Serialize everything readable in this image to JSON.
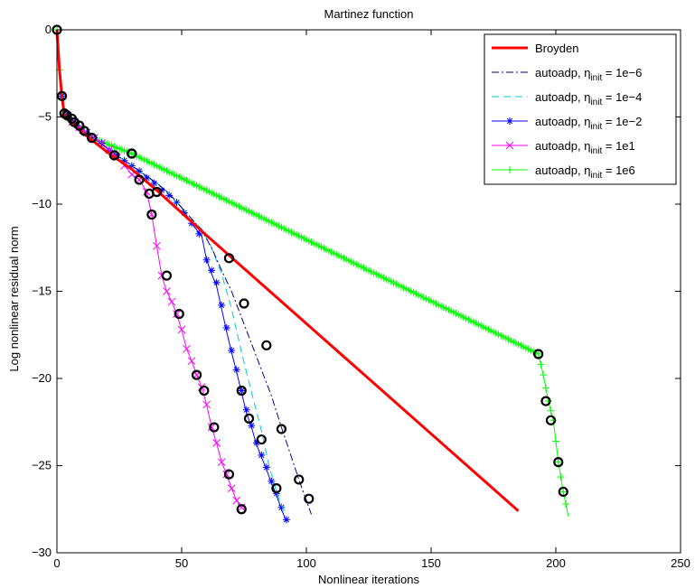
{
  "chart_data": {
    "type": "line",
    "title": "Martinez function",
    "xlabel": "Nonlinear iterations",
    "ylabel": "Log nonlinear residual norm",
    "xlim": [
      0,
      250
    ],
    "ylim": [
      -30,
      0
    ],
    "xticks": [
      0,
      50,
      100,
      150,
      200,
      250
    ],
    "yticks": [
      0,
      -5,
      -10,
      -15,
      -20,
      -25,
      -30
    ],
    "grid": false,
    "legend_position": "top-right",
    "legend_labels": [
      {
        "base": "Broyden",
        "sub": "",
        "tail": ""
      },
      {
        "base": "autoadp, η",
        "sub": "init",
        "tail": " = 1e−6"
      },
      {
        "base": "autoadp, η",
        "sub": "init",
        "tail": " = 1e−4"
      },
      {
        "base": "autoadp, η",
        "sub": "init",
        "tail": " = 1e−2"
      },
      {
        "base": "autoadp, η",
        "sub": "init",
        "tail": " = 1e1"
      },
      {
        "base": "autoadp, η",
        "sub": "init",
        "tail": " = 1e6"
      }
    ],
    "series": [
      {
        "name": "Broyden",
        "color": "#ff0000",
        "style": "solid",
        "marker": "none",
        "x": [
          0,
          1,
          2,
          3,
          5,
          8,
          12,
          20,
          30,
          40,
          50,
          60,
          185
        ],
        "y": [
          0,
          -2.3,
          -3.8,
          -4.9,
          -5.2,
          -5.6,
          -6.1,
          -7.0,
          -8.0,
          -9.2,
          -10.5,
          -11.8,
          -27.6
        ],
        "circles_x": [],
        "circles_y": []
      },
      {
        "name": "autoadp, ηinit = 1e−6",
        "color": "#00008b",
        "style": "dashdot",
        "marker": "none",
        "x": [
          0,
          1,
          2,
          3,
          5,
          8,
          12,
          20,
          30,
          40,
          45,
          50,
          55,
          58,
          62,
          66,
          70,
          74,
          78,
          82,
          86,
          90,
          94,
          97,
          100,
          102
        ],
        "y": [
          0,
          -2.3,
          -3.8,
          -4.8,
          -5.1,
          -5.5,
          -5.9,
          -6.8,
          -7.8,
          -8.8,
          -9.4,
          -10.2,
          -11.0,
          -11.5,
          -12.5,
          -13.8,
          -15.0,
          -16.5,
          -18.0,
          -19.5,
          -21.0,
          -22.8,
          -24.5,
          -25.8,
          -27.0,
          -27.8
        ],
        "circles_x": [
          69,
          75,
          84,
          90,
          97,
          101
        ],
        "circles_y": [
          -13.1,
          -15.7,
          -18.1,
          -22.9,
          -25.8,
          -26.9
        ],
        "marker_x": [],
        "marker_y": []
      },
      {
        "name": "autoadp, ηinit = 1e−4",
        "color": "#00cccc",
        "style": "dashed",
        "marker": "none",
        "x": [
          0,
          1,
          2,
          3,
          5,
          8,
          12,
          20,
          30,
          40,
          45,
          50,
          55,
          58,
          62,
          66,
          70,
          74,
          78,
          82,
          85,
          88,
          90,
          92
        ],
        "y": [
          0,
          -2.3,
          -3.8,
          -4.8,
          -5.1,
          -5.5,
          -5.9,
          -6.8,
          -7.8,
          -8.8,
          -9.4,
          -10.2,
          -11.0,
          -11.4,
          -12.5,
          -14.0,
          -16.0,
          -18.5,
          -20.8,
          -23.0,
          -25.0,
          -26.5,
          -27.3,
          -27.8
        ],
        "circles_x": [
          74,
          77,
          82,
          88
        ],
        "circles_y": [
          -20.7,
          -22.3,
          -23.5,
          -26.3
        ],
        "marker_x": [],
        "marker_y": []
      },
      {
        "name": "autoadp, ηinit = 1e−2",
        "color": "#0000ff",
        "style": "solid",
        "marker": "star",
        "x": [
          0,
          1,
          2,
          3,
          5,
          8,
          12,
          20,
          30,
          40,
          45,
          50,
          55,
          58,
          60,
          62,
          64,
          66,
          68,
          70,
          72,
          74,
          76,
          78,
          80,
          82,
          84,
          86,
          88,
          90,
          92
        ],
        "y": [
          0,
          -2.3,
          -3.8,
          -4.8,
          -5.1,
          -5.5,
          -5.9,
          -6.8,
          -7.8,
          -8.8,
          -9.4,
          -10.2,
          -11.3,
          -11.8,
          -13.2,
          -14.0,
          -14.7,
          -16.0,
          -17.3,
          -18.5,
          -19.6,
          -20.8,
          -22.0,
          -22.8,
          -23.8,
          -24.5,
          -25.2,
          -26.0,
          -26.7,
          -27.5,
          -28.2
        ],
        "circles_x": [],
        "circles_y": [],
        "marker_x": [
          2,
          4,
          6,
          8,
          10,
          12,
          15,
          18,
          21,
          24,
          27,
          30,
          33,
          36,
          39,
          42,
          45,
          48,
          51,
          54,
          57,
          60,
          62,
          64,
          66,
          68,
          70,
          72,
          74,
          76,
          78,
          80,
          82,
          84,
          86,
          88,
          90,
          92
        ],
        "marker_y": [
          -3.8,
          -4.9,
          -5.2,
          -5.5,
          -5.8,
          -5.9,
          -6.2,
          -6.5,
          -6.9,
          -7.2,
          -7.5,
          -7.8,
          -8.1,
          -8.5,
          -8.8,
          -9.2,
          -9.5,
          -9.9,
          -10.5,
          -11.1,
          -11.7,
          -13.2,
          -13.8,
          -14.5,
          -15.8,
          -17.1,
          -18.4,
          -19.5,
          -20.7,
          -21.8,
          -22.7,
          -23.7,
          -24.4,
          -25.1,
          -25.9,
          -26.6,
          -27.4,
          -28.1
        ]
      },
      {
        "name": "autoadp, ηinit = 1e1",
        "color": "#ff00ff",
        "style": "solid",
        "marker": "x",
        "x": [
          0,
          1,
          2,
          3,
          5,
          8,
          12,
          18,
          22,
          26,
          30,
          33,
          36,
          38,
          40,
          42,
          44,
          46,
          48,
          50,
          52,
          54,
          56,
          58,
          60,
          62,
          64,
          66,
          68,
          70,
          72,
          74,
          75
        ],
        "y": [
          0,
          -2.3,
          -3.8,
          -4.8,
          -5.2,
          -5.5,
          -5.9,
          -6.5,
          -7.0,
          -7.6,
          -8.3,
          -8.6,
          -9.3,
          -10.6,
          -12.4,
          -14.1,
          -15.0,
          -15.6,
          -16.3,
          -17.2,
          -18.3,
          -19.0,
          -19.8,
          -20.5,
          -21.5,
          -22.8,
          -23.7,
          -24.8,
          -25.5,
          -26.3,
          -27.0,
          -27.4,
          -27.5
        ],
        "circles_x": [
          23,
          30,
          33,
          37,
          38,
          40,
          44,
          49,
          56,
          59,
          63,
          69,
          74
        ],
        "circles_y": [
          -7.2,
          -7.1,
          -8.6,
          -9.4,
          -10.6,
          -9.3,
          -14.1,
          -16.3,
          -19.8,
          -20.7,
          -22.8,
          -25.5,
          -27.5
        ],
        "marker_x": [
          3,
          6,
          9,
          12,
          15,
          18,
          21,
          24,
          27,
          30,
          33,
          36,
          38,
          40,
          42,
          44,
          46,
          48,
          50,
          52,
          54,
          56,
          58,
          60,
          62,
          64,
          66,
          68,
          70,
          72,
          74
        ],
        "marker_y": [
          -4.8,
          -5.3,
          -5.6,
          -5.9,
          -6.2,
          -6.5,
          -6.9,
          -7.3,
          -7.8,
          -8.3,
          -8.6,
          -9.3,
          -10.6,
          -12.4,
          -14.1,
          -15.0,
          -15.6,
          -16.3,
          -17.2,
          -18.3,
          -19.0,
          -19.8,
          -20.5,
          -21.5,
          -22.8,
          -23.7,
          -24.8,
          -25.5,
          -26.3,
          -27.0,
          -27.4
        ]
      },
      {
        "name": "autoadp, ηinit = 1e6",
        "color": "#00ff00",
        "style": "solid",
        "marker": "plus",
        "x": [
          0,
          1,
          2,
          3,
          5,
          8,
          11,
          14,
          30,
          193,
          195,
          197,
          199,
          201,
          203,
          205
        ],
        "y": [
          0,
          -2.3,
          -3.8,
          -4.8,
          -5.2,
          -5.5,
          -5.8,
          -6.2,
          -7.1,
          -18.6,
          -19.8,
          -21.3,
          -22.4,
          -24.8,
          -26.5,
          -27.9
        ],
        "circles_x": [
          0,
          2,
          3,
          4,
          6,
          7,
          9,
          11,
          14,
          23,
          30,
          193,
          196,
          198,
          201,
          203
        ],
        "circles_y": [
          0,
          -3.8,
          -4.8,
          -4.9,
          -5.1,
          -5.3,
          -5.5,
          -5.8,
          -6.2,
          -7.2,
          -7.1,
          -18.6,
          -21.3,
          -22.4,
          -24.8,
          -26.5
        ],
        "marker_x": [],
        "marker_y": []
      }
    ]
  }
}
